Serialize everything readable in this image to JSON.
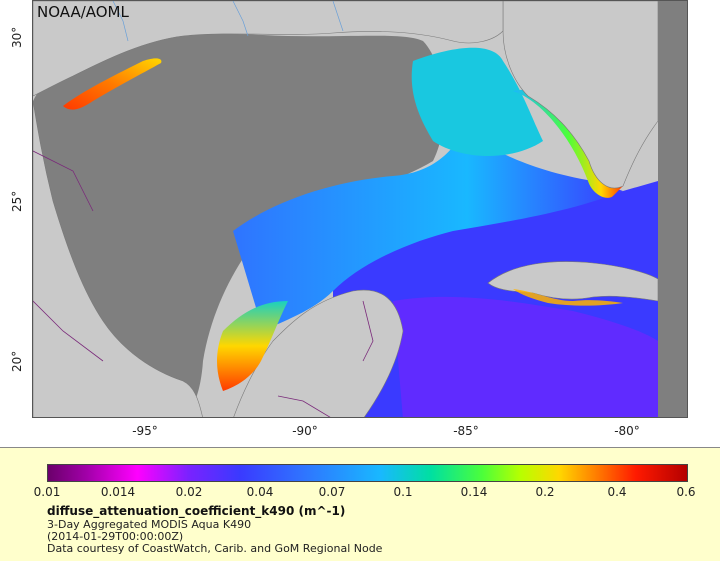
{
  "map": {
    "credit": "NOAA/AOML",
    "x_ticks": [
      "-95°",
      "-90°",
      "-85°",
      "-80°"
    ],
    "y_ticks": [
      "30°",
      "25°",
      "20°"
    ]
  },
  "legend": {
    "colorbar_labels": [
      "0.01",
      "0.014",
      "0.02",
      "0.04",
      "0.07",
      "0.1",
      "0.14",
      "0.2",
      "0.4",
      "0.6"
    ],
    "variable": "diffuse_attenuation_coefficient_k490 (m^-1)",
    "line1": "3-Day Aggregated MODIS Aqua K490",
    "line2": "(2014-01-29T00:00:00Z)",
    "line3": "Data courtesy of CoastWatch, Carib. and GoM Regional Node"
  },
  "colors": {
    "land": "#c9c9c9",
    "nodata": "#7f7f7f",
    "legend_bg": "#ffffcc",
    "low": "#6b006b",
    "mid": "#19b8ff",
    "high": "#b40000"
  }
}
